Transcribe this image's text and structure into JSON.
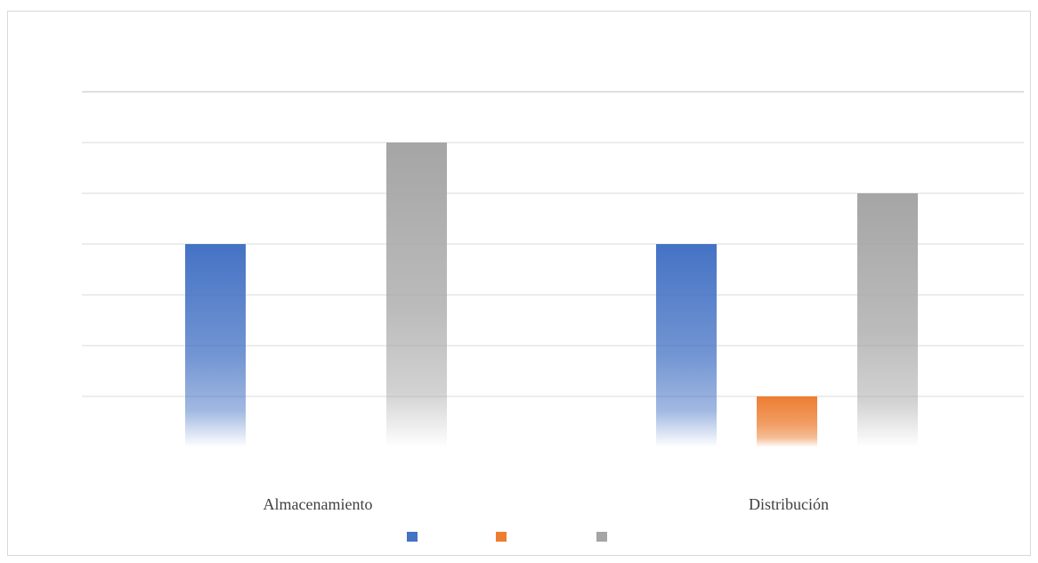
{
  "chart_data": {
    "type": "bar",
    "categories": [
      "Almacenamiento",
      "Distribución"
    ],
    "series": [
      {
        "values": [
          4,
          4
        ],
        "color": "#4472c4"
      },
      {
        "values": [
          0,
          1
        ],
        "color": "#ed7d31"
      },
      {
        "values": [
          6,
          5
        ],
        "color": "#a5a5a5"
      }
    ],
    "ylim": [
      0,
      7
    ],
    "grid": true,
    "gridline_count": 7,
    "legend_position": "bottom",
    "gradient_fill": true
  }
}
